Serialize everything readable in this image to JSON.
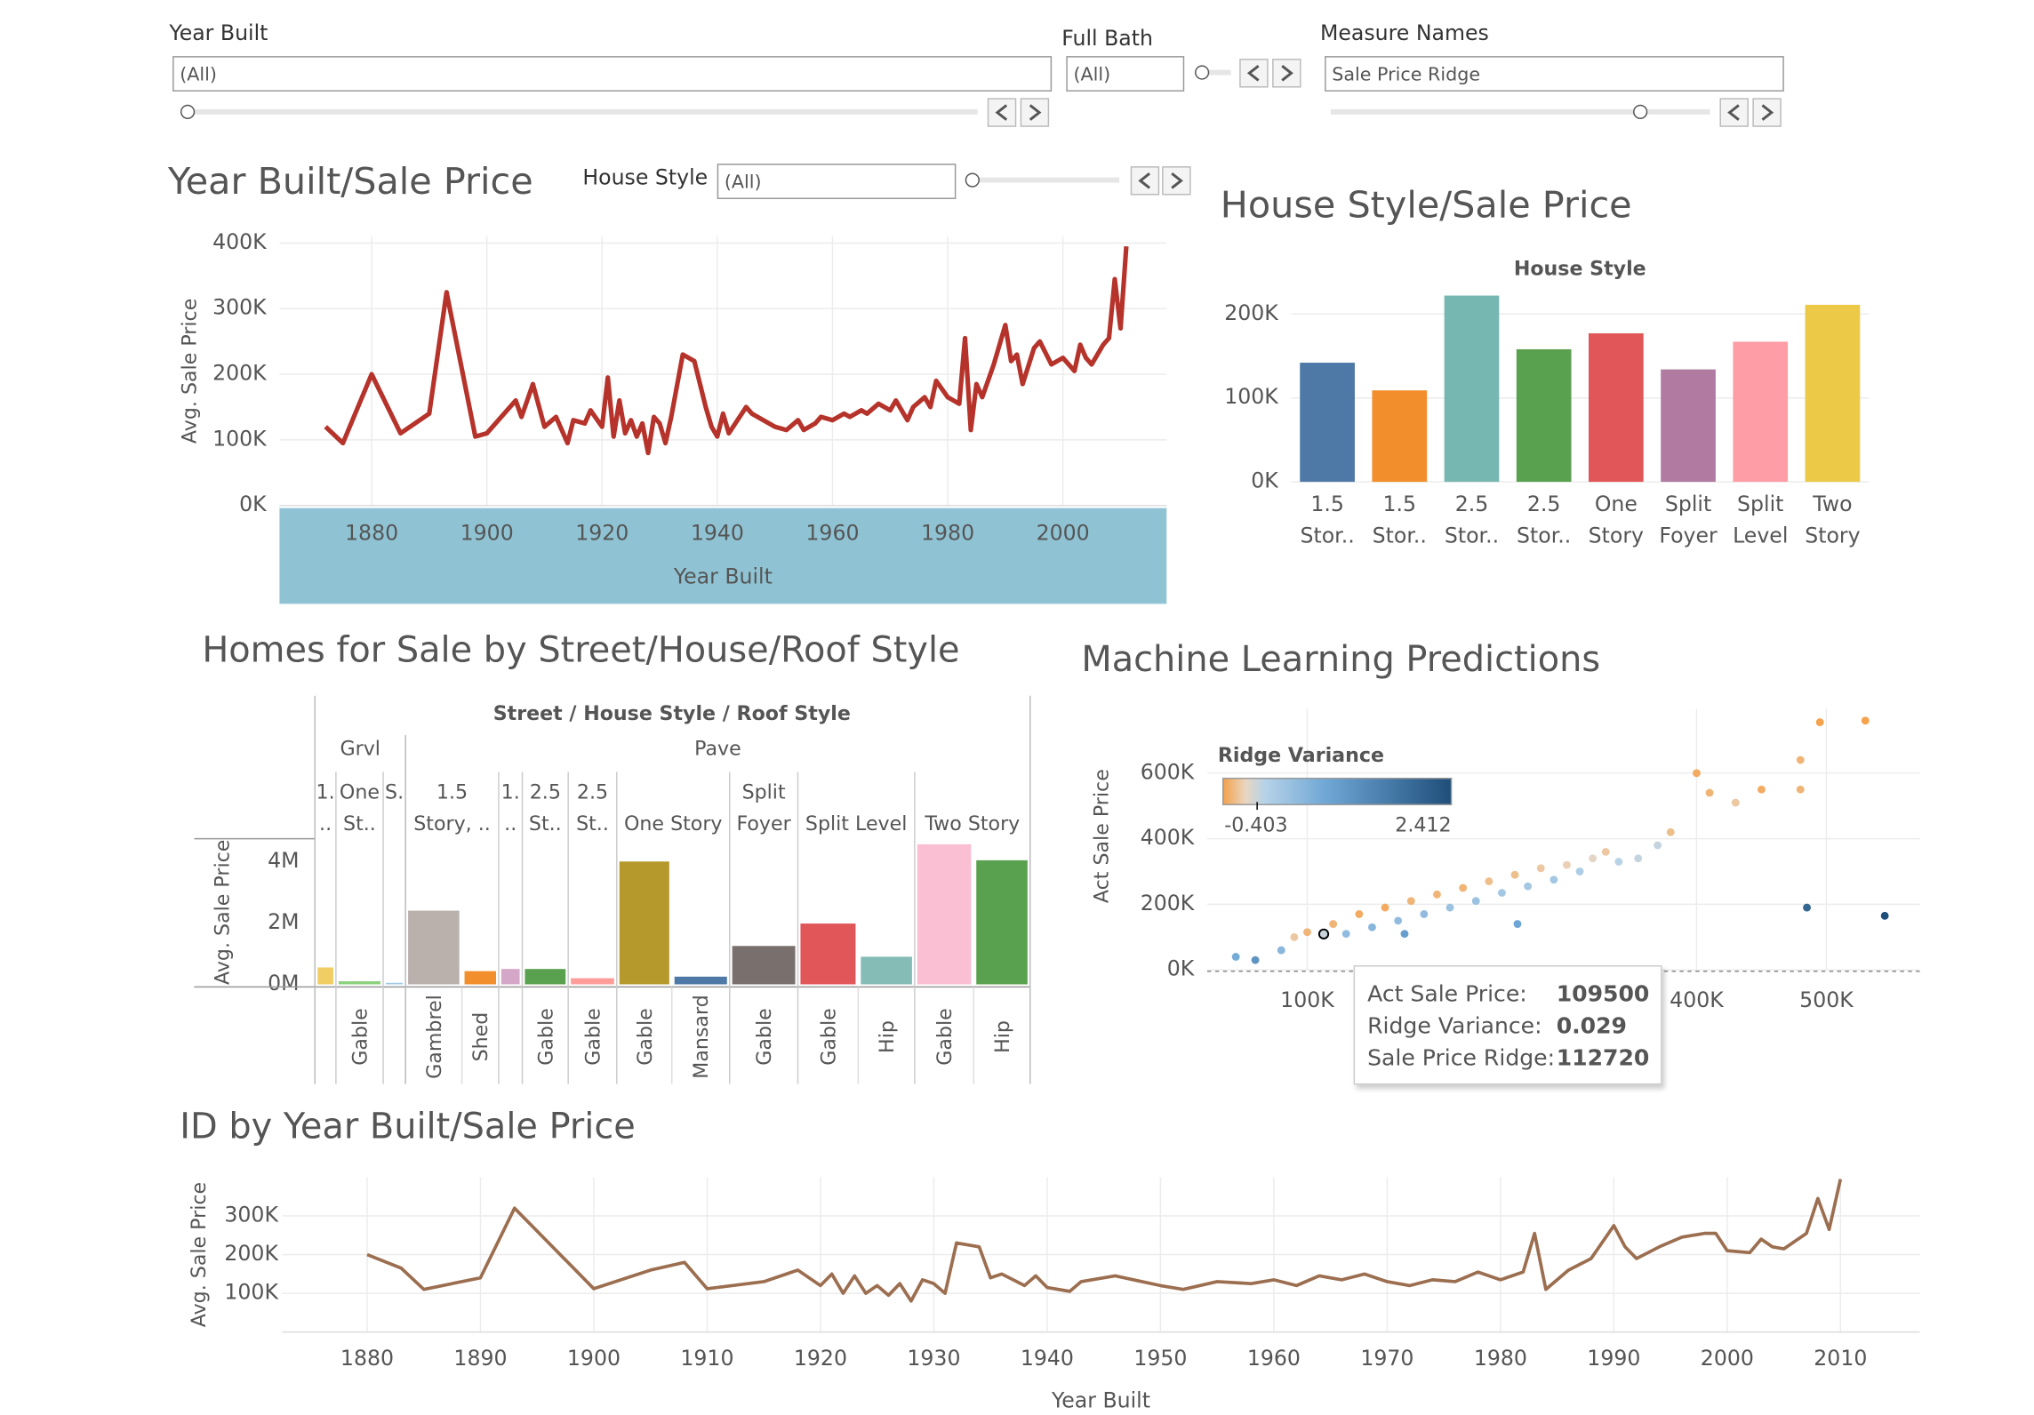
{
  "filters": [
    {
      "label": "Year Built",
      "value": "(All)"
    },
    {
      "label": "Full Bath",
      "value": "(All)"
    },
    {
      "label": "Measure Names",
      "value": "Sale Price Ridge"
    },
    {
      "label": "House Style",
      "value": "(All)"
    }
  ],
  "chart_data": [
    {
      "type": "line",
      "title": "Year Built/Sale Price",
      "x_label": "Year Built",
      "y_label": "Avg. Sale Price",
      "color": "#b5332a",
      "grid": true,
      "xlim": [
        1864,
        2018
      ],
      "ylim": [
        0,
        410000
      ],
      "xticks": [
        1880,
        1900,
        1920,
        1940,
        1960,
        1980,
        2000
      ],
      "yticks": [
        {
          "value": 0,
          "label": "0K"
        },
        {
          "value": 100000,
          "label": "100K"
        },
        {
          "value": 200000,
          "label": "200K"
        },
        {
          "value": 300000,
          "label": "300K"
        },
        {
          "value": 400000,
          "label": "400K"
        }
      ],
      "x": [
        1872,
        1875,
        1880,
        1885,
        1890,
        1893,
        1898,
        1900,
        1905,
        1906,
        1908,
        1910,
        1912,
        1914,
        1915,
        1917,
        1918,
        1920,
        1921,
        1922,
        1923,
        1924,
        1925,
        1926,
        1927,
        1928,
        1929,
        1930,
        1931,
        1932,
        1934,
        1936,
        1938,
        1939,
        1940,
        1941,
        1942,
        1945,
        1946,
        1948,
        1950,
        1952,
        1954,
        1955,
        1957,
        1958,
        1960,
        1962,
        1963,
        1965,
        1966,
        1968,
        1970,
        1971,
        1972,
        1973,
        1974,
        1976,
        1977,
        1978,
        1980,
        1982,
        1983,
        1984,
        1985,
        1986,
        1988,
        1990,
        1991,
        1992,
        1993,
        1995,
        1996,
        1998,
        2000,
        2002,
        2003,
        2004,
        2005,
        2007,
        2008,
        2009,
        2010,
        2011
      ],
      "values": [
        120000,
        95000,
        200000,
        110000,
        140000,
        325000,
        105000,
        110000,
        160000,
        135000,
        185000,
        120000,
        135000,
        95000,
        130000,
        125000,
        145000,
        120000,
        195000,
        105000,
        160000,
        110000,
        130000,
        105000,
        125000,
        80000,
        135000,
        125000,
        95000,
        135000,
        230000,
        220000,
        150000,
        120000,
        105000,
        140000,
        110000,
        150000,
        140000,
        130000,
        120000,
        115000,
        130000,
        115000,
        125000,
        135000,
        130000,
        140000,
        135000,
        145000,
        140000,
        155000,
        145000,
        160000,
        145000,
        130000,
        150000,
        165000,
        150000,
        190000,
        165000,
        155000,
        255000,
        115000,
        185000,
        165000,
        215000,
        275000,
        220000,
        230000,
        185000,
        240000,
        250000,
        215000,
        225000,
        205000,
        245000,
        225000,
        215000,
        245000,
        255000,
        345000,
        270000,
        395000
      ]
    },
    {
      "type": "bar",
      "title": "House Style/Sale Price",
      "header": "House Style",
      "grid": true,
      "categories": [
        [
          "1.5",
          "Stor.."
        ],
        [
          "1.5",
          "Stor.."
        ],
        [
          "2.5",
          "Stor.."
        ],
        [
          "2.5",
          "Stor.."
        ],
        [
          "One",
          "Story"
        ],
        [
          "Split",
          "Foyer"
        ],
        [
          "Split",
          "Level"
        ],
        [
          "Two",
          "Story"
        ]
      ],
      "values": [
        142000,
        109000,
        222000,
        158000,
        177000,
        134000,
        167000,
        211000
      ],
      "colors": [
        "#4e79a7",
        "#f28e2b",
        "#76b7b2",
        "#59a14f",
        "#e15759",
        "#b07aa1",
        "#ff9da7",
        "#edc948"
      ],
      "ylim": [
        0,
        233000
      ],
      "yticks": [
        {
          "value": 0,
          "label": "0K"
        },
        {
          "value": 100000,
          "label": "100K"
        },
        {
          "value": 200000,
          "label": "200K"
        }
      ]
    },
    {
      "type": "groupedbar",
      "title": "Homes for Sale by Street/House/Roof Style",
      "header": "Street / House Style / Roof Style",
      "y_label": "Avg. Sale Price",
      "ylim": [
        0,
        4700000
      ],
      "yticks": [
        {
          "value": 0,
          "label": "0M"
        },
        {
          "value": 2000000,
          "label": "2M"
        },
        {
          "value": 4000000,
          "label": "4M"
        }
      ],
      "colors": [
        "#f1ce63",
        "#8cd17d",
        "#a0cbe8",
        "#bab0ac",
        "#f28e2b",
        "#d4a6c8",
        "#59a14f",
        "#ff9d9a",
        "#b6992d",
        "#4e79a7",
        "#79706e",
        "#e15759",
        "#86bcb6",
        "#fabfd2",
        "#59a14f"
      ],
      "streets": [
        {
          "name": "Grvl",
          "styles": [
            {
              "name": [
                "1.",
                ".."
              ],
              "roofs": [
                {
                  "name": null,
                  "value": 550000
                }
              ]
            },
            {
              "name": [
                "One",
                "St.."
              ],
              "roofs": [
                {
                  "name": "Gable",
                  "value": 100000
                }
              ]
            },
            {
              "name": [
                "S.",
                null
              ],
              "roofs": [
                {
                  "name": null,
                  "value": 50000
                }
              ]
            }
          ]
        },
        {
          "name": "Pave",
          "styles": [
            {
              "name": [
                "1.5",
                "Story, .."
              ],
              "roofs": [
                {
                  "name": "Gambrel",
                  "value": 2400000
                },
                {
                  "name": "Shed",
                  "value": 430000
                }
              ]
            },
            {
              "name": [
                "1.",
                ".."
              ],
              "roofs": [
                {
                  "name": null,
                  "value": 500000
                }
              ]
            },
            {
              "name": [
                "2.5",
                "St.."
              ],
              "roofs": [
                {
                  "name": "Gable",
                  "value": 500000
                }
              ]
            },
            {
              "name": [
                "2.5",
                "St.."
              ],
              "roofs": [
                {
                  "name": "Gable",
                  "value": 200000
                }
              ]
            },
            {
              "name": [
                null,
                "One Story"
              ],
              "roofs": [
                {
                  "name": "Gable",
                  "value": 4000000
                },
                {
                  "name": "Mansard",
                  "value": 250000
                }
              ]
            },
            {
              "name": [
                "Split",
                "Foyer"
              ],
              "roofs": [
                {
                  "name": "Gable",
                  "value": 1250000
                }
              ]
            },
            {
              "name": [
                null,
                "Split Level"
              ],
              "roofs": [
                {
                  "name": "Gable",
                  "value": 1980000
                },
                {
                  "name": "Hip",
                  "value": 900000
                }
              ]
            },
            {
              "name": [
                null,
                "Two Story"
              ],
              "roofs": [
                {
                  "name": "Gable",
                  "value": 4560000
                },
                {
                  "name": "Hip",
                  "value": 4040000
                }
              ]
            }
          ]
        }
      ]
    },
    {
      "type": "scatter",
      "title": "Machine Learning Predictions",
      "y_label": "Act Sale Price",
      "grid": true,
      "xlim": [
        23000,
        572000
      ],
      "ylim": [
        0,
        796000
      ],
      "xticks": [
        {
          "value": 100000,
          "label": "100K"
        },
        {
          "value": 400000,
          "label": "400K"
        },
        {
          "value": 500000,
          "label": "500K"
        }
      ],
      "yticks": [
        {
          "value": 0,
          "label": "0K"
        },
        {
          "value": 200000,
          "label": "200K"
        },
        {
          "value": 400000,
          "label": "400K"
        },
        {
          "value": 600000,
          "label": "600K"
        }
      ],
      "colorbar": {
        "title": "Ridge Variance",
        "range": [
          -0.403,
          2.412
        ]
      },
      "x": [
        45000,
        60000,
        80000,
        90000,
        100000,
        112720,
        120000,
        130000,
        140000,
        150000,
        160000,
        170000,
        180000,
        190000,
        200000,
        210000,
        220000,
        230000,
        240000,
        250000,
        260000,
        270000,
        280000,
        290000,
        300000,
        310000,
        320000,
        330000,
        340000,
        355000,
        370000,
        380000,
        400000,
        410000,
        430000,
        450000,
        480000,
        480000,
        495000,
        530000,
        485000,
        545000,
        262000,
        175000
      ],
      "values": [
        40000,
        30000,
        60000,
        100000,
        115000,
        109500,
        140000,
        110000,
        170000,
        130000,
        190000,
        150000,
        210000,
        170000,
        230000,
        190000,
        250000,
        210000,
        270000,
        235000,
        290000,
        255000,
        310000,
        275000,
        320000,
        300000,
        340000,
        360000,
        330000,
        340000,
        380000,
        420000,
        600000,
        540000,
        510000,
        550000,
        640000,
        550000,
        755000,
        760000,
        190000,
        165000,
        140000,
        110000
      ],
      "color_values": [
        0.8,
        1.2,
        0.6,
        -0.2,
        -0.3,
        0.029,
        -0.3,
        0.5,
        -0.35,
        0.6,
        -0.35,
        0.5,
        -0.3,
        0.5,
        -0.3,
        0.4,
        -0.3,
        0.4,
        -0.25,
        0.3,
        -0.25,
        0.3,
        -0.2,
        0.3,
        -0.15,
        0.2,
        -0.1,
        -0.2,
        0.1,
        0.05,
        0.05,
        -0.25,
        -0.35,
        -0.3,
        -0.2,
        -0.35,
        -0.3,
        -0.3,
        -0.4,
        -0.4,
        2.0,
        2.412,
        0.9,
        1.0
      ],
      "highlight": 5,
      "tooltip": [
        {
          "label": "Act Sale Price:",
          "value": 109500
        },
        {
          "label": "Ridge Variance:",
          "value": 0.029
        },
        {
          "label": "Sale Price Ridge:",
          "value": 112720
        }
      ]
    },
    {
      "type": "line",
      "title": "ID by Year Built/Sale Price",
      "x_label": "Year Built",
      "y_label": "Avg. Sale Price",
      "color": "#9c6e50",
      "grid": true,
      "xlim": [
        1872.5,
        2017
      ],
      "ylim": [
        0,
        400000
      ],
      "xticks": [
        1880,
        1890,
        1900,
        1910,
        1920,
        1930,
        1940,
        1950,
        1960,
        1970,
        1980,
        1990,
        2000,
        2010
      ],
      "yticks": [
        {
          "value": 100000,
          "label": "100K"
        },
        {
          "value": 200000,
          "label": "200K"
        },
        {
          "value": 300000,
          "label": "300K"
        }
      ],
      "x": [
        1880,
        1883,
        1885,
        1890,
        1893,
        1900,
        1905,
        1908,
        1910,
        1915,
        1918,
        1920,
        1921,
        1922,
        1923,
        1924,
        1925,
        1926,
        1927,
        1928,
        1929,
        1930,
        1931,
        1932,
        1934,
        1935,
        1936,
        1938,
        1939,
        1940,
        1942,
        1943,
        1946,
        1950,
        1952,
        1955,
        1958,
        1960,
        1962,
        1964,
        1966,
        1968,
        1970,
        1972,
        1974,
        1976,
        1978,
        1980,
        1982,
        1983,
        1984,
        1986,
        1988,
        1990,
        1991,
        1992,
        1994,
        1996,
        1998,
        1999,
        2000,
        2002,
        2003,
        2004,
        2005,
        2007,
        2008,
        2009,
        2010
      ],
      "values": [
        200000,
        165000,
        110000,
        140000,
        320000,
        112000,
        160000,
        180000,
        112000,
        130000,
        160000,
        120000,
        150000,
        100000,
        145000,
        100000,
        120000,
        95000,
        125000,
        80000,
        135000,
        125000,
        100000,
        230000,
        220000,
        140000,
        150000,
        120000,
        145000,
        115000,
        105000,
        130000,
        145000,
        120000,
        110000,
        130000,
        125000,
        135000,
        120000,
        145000,
        135000,
        150000,
        130000,
        120000,
        135000,
        130000,
        155000,
        135000,
        155000,
        255000,
        110000,
        160000,
        190000,
        275000,
        220000,
        190000,
        220000,
        245000,
        255000,
        255000,
        210000,
        205000,
        240000,
        220000,
        215000,
        255000,
        345000,
        265000,
        395000
      ]
    }
  ]
}
